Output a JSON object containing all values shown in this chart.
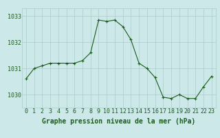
{
  "x": [
    0,
    1,
    2,
    3,
    4,
    5,
    6,
    7,
    8,
    9,
    10,
    11,
    12,
    13,
    14,
    15,
    16,
    17,
    18,
    19,
    20,
    21,
    22,
    23
  ],
  "y": [
    1030.6,
    1031.0,
    1031.1,
    1031.2,
    1031.2,
    1031.2,
    1031.2,
    1031.3,
    1031.6,
    1032.85,
    1032.8,
    1032.85,
    1032.6,
    1032.1,
    1031.2,
    1031.0,
    1030.65,
    1029.9,
    1029.85,
    1030.0,
    1029.85,
    1029.85,
    1030.3,
    1030.7
  ],
  "line_color": "#1a5c1a",
  "marker_color": "#1a5c1a",
  "bg_color": "#cce8e8",
  "grid_color": "#aacccc",
  "title": "Graphe pression niveau de la mer (hPa)",
  "ylim": [
    1029.5,
    1033.3
  ],
  "yticks": [
    1030,
    1031,
    1032,
    1033
  ],
  "xticks": [
    0,
    1,
    2,
    3,
    4,
    5,
    6,
    7,
    8,
    9,
    10,
    11,
    12,
    13,
    14,
    15,
    16,
    17,
    18,
    19,
    20,
    21,
    22,
    23
  ],
  "title_fontsize": 7.0,
  "tick_fontsize": 6.0,
  "title_color": "#1a5c1a",
  "tick_color": "#1a5c1a"
}
